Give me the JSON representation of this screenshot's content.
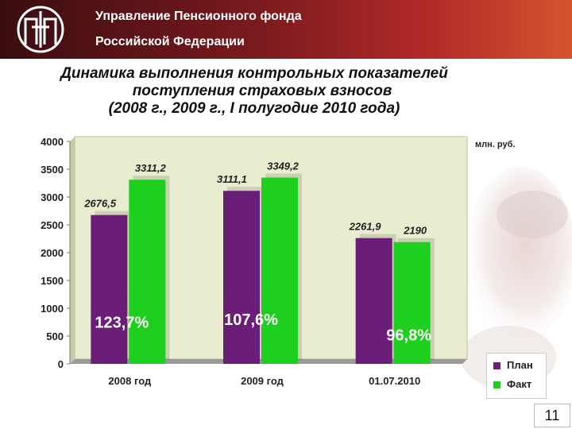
{
  "header": {
    "org_line_1": "Управление Пенсионного фонда",
    "org_line_2": "Российской Федерации",
    "logo_icon": "pfr-emblem-icon",
    "background_colors": [
      "#3a0d10",
      "#b32a28",
      "#d4542e"
    ]
  },
  "title_lines": [
    "Динамика выполнения контрольных показателей",
    "поступления страховых взносов",
    "(2008 г., 2009 г., I полугодие 2010 года)"
  ],
  "chart_data": {
    "type": "bar",
    "unit": "млн. руб.",
    "categories": [
      "2008 год",
      "2009 год",
      "01.07.2010"
    ],
    "series": [
      {
        "name": "План",
        "values": [
          2676.5,
          3111.1,
          2261.9
        ],
        "labels": [
          "2676,5",
          "3111,1",
          "2261,9"
        ],
        "color": "#6a1e78"
      },
      {
        "name": "Факт",
        "values": [
          3311.2,
          3349.2,
          2190
        ],
        "labels": [
          "3311,2",
          "3349,2",
          "2190"
        ],
        "color": "#1ed01e"
      }
    ],
    "percent_labels": [
      "123,7%",
      "107,6%",
      "96,8%"
    ],
    "ylim": [
      0,
      4000
    ],
    "yticks": [
      0,
      500,
      1000,
      1500,
      2000,
      2500,
      3000,
      3500,
      4000
    ],
    "grid": false,
    "legend_placement": "bottom-right",
    "plot_background": "#eaeccf"
  },
  "page_number": "11"
}
